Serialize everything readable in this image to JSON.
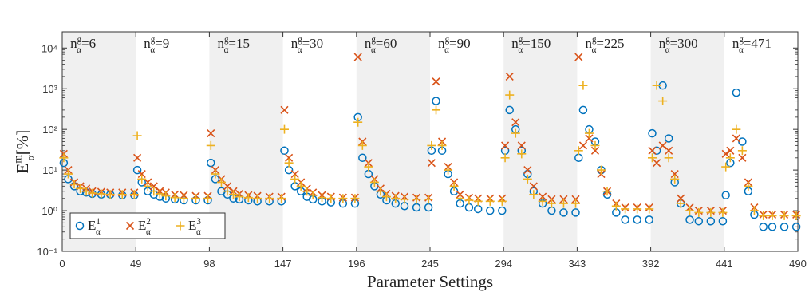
{
  "chart_data": {
    "type": "scatter",
    "xlabel": "Parameter Settings",
    "ylabel": {
      "base": "E",
      "sup": "m",
      "sub": "α",
      "unit": "[%]"
    },
    "group_symbol": {
      "base": "n",
      "sup": "g",
      "sub": "α",
      "relation": "="
    },
    "group_sizes": [
      6,
      9,
      15,
      30,
      60,
      90,
      150,
      225,
      300,
      471
    ],
    "xlim": [
      0,
      490
    ],
    "xticks": [
      0,
      49,
      98,
      147,
      196,
      245,
      294,
      343,
      392,
      441,
      490
    ],
    "ylim": [
      0.1,
      25000
    ],
    "log_y": true,
    "yticks": [
      {
        "value": 0.1,
        "label": "10⁻¹"
      },
      {
        "value": 1,
        "label": "10⁰"
      },
      {
        "value": 10,
        "label": "10¹"
      },
      {
        "value": 100,
        "label": "10²"
      },
      {
        "value": 1000,
        "label": "10³"
      },
      {
        "value": 10000,
        "label": "10⁴"
      }
    ],
    "band_shading": "#f0f0f0",
    "legend_position": "lower left",
    "x": [
      1,
      4,
      8,
      12,
      16,
      20,
      26,
      32,
      40,
      48,
      50,
      53,
      57,
      61,
      65,
      69,
      75,
      81,
      89,
      97,
      99,
      102,
      106,
      110,
      114,
      118,
      124,
      130,
      138,
      146,
      148,
      151,
      155,
      159,
      163,
      167,
      173,
      179,
      187,
      195,
      197,
      200,
      204,
      208,
      212,
      216,
      222,
      228,
      236,
      244,
      246,
      249,
      253,
      257,
      261,
      265,
      271,
      277,
      285,
      293,
      295,
      298,
      302,
      306,
      310,
      314,
      320,
      326,
      334,
      342,
      344,
      347,
      351,
      355,
      359,
      363,
      369,
      375,
      383,
      391,
      393,
      396,
      400,
      404,
      408,
      412,
      418,
      424,
      432,
      440,
      442,
      445,
      449,
      453,
      457,
      461,
      467,
      473,
      481,
      489
    ],
    "series": [
      {
        "name": "E",
        "sup": "1",
        "sub": "α",
        "color": "#0072bd",
        "marker": "o",
        "values": [
          15,
          6,
          4,
          3,
          2.8,
          2.6,
          2.5,
          2.5,
          2.4,
          2.4,
          10,
          5,
          3,
          2.5,
          2.2,
          2,
          1.9,
          1.8,
          1.8,
          1.8,
          15,
          6,
          3,
          2.5,
          2,
          1.9,
          1.8,
          1.7,
          1.7,
          1.7,
          30,
          10,
          4,
          3,
          2.2,
          1.9,
          1.7,
          1.6,
          1.5,
          1.5,
          200,
          20,
          8,
          4,
          2.5,
          1.8,
          1.5,
          1.3,
          1.2,
          1.2,
          30,
          500,
          30,
          8,
          3,
          1.5,
          1.2,
          1.1,
          1,
          1,
          30,
          300,
          100,
          30,
          8,
          3,
          1.5,
          1,
          0.9,
          0.9,
          20,
          300,
          100,
          50,
          10,
          2.5,
          0.9,
          0.6,
          0.6,
          0.6,
          80,
          30,
          1200,
          60,
          5,
          1.5,
          0.6,
          0.55,
          0.55,
          0.55,
          2.4,
          15,
          800,
          50,
          3,
          0.8,
          0.4,
          0.4,
          0.4,
          0.4
        ]
      },
      {
        "name": "E",
        "sup": "2",
        "sub": "α",
        "color": "#d95319",
        "marker": "x",
        "values": [
          25,
          10,
          5,
          4,
          3.5,
          3,
          2.9,
          2.8,
          2.8,
          2.8,
          20,
          8,
          5,
          4,
          3,
          2.8,
          2.5,
          2.4,
          2.3,
          2.3,
          80,
          10,
          6,
          4,
          3,
          2.6,
          2.4,
          2.3,
          2.2,
          2.2,
          300,
          20,
          8,
          5,
          3.5,
          2.8,
          2.4,
          2.2,
          2.1,
          2.1,
          6000,
          50,
          15,
          6,
          3.5,
          2.6,
          2.3,
          2.2,
          2.1,
          2.1,
          15,
          1500,
          50,
          12,
          5,
          2.5,
          2.1,
          2,
          2,
          2,
          40,
          2000,
          150,
          40,
          10,
          4,
          2.2,
          1.9,
          1.9,
          1.9,
          6000,
          40,
          60,
          30,
          8,
          3,
          1.5,
          1.2,
          1.2,
          1.2,
          30,
          15,
          40,
          30,
          8,
          2,
          1.2,
          1,
          1,
          1,
          25,
          30,
          60,
          20,
          5,
          1.2,
          0.8,
          0.8,
          0.8,
          0.8
        ]
      },
      {
        "name": "E",
        "sup": "3",
        "sub": "α",
        "color": "#edb120",
        "marker": "+",
        "values": [
          20,
          8,
          4.5,
          3.5,
          3,
          2.7,
          2.6,
          2.5,
          2.5,
          2.5,
          70,
          6,
          4,
          3,
          2.6,
          2.3,
          2.1,
          2,
          2,
          2,
          40,
          8,
          5,
          3,
          2.5,
          2.2,
          2.1,
          2,
          2,
          2,
          100,
          15,
          6,
          4,
          3,
          2.4,
          2.1,
          2,
          2,
          2,
          150,
          40,
          12,
          5,
          3,
          2.2,
          2,
          1.9,
          1.9,
          1.9,
          40,
          300,
          40,
          10,
          4,
          2,
          1.8,
          1.7,
          1.7,
          1.7,
          20,
          700,
          80,
          25,
          6,
          2.5,
          1.7,
          1.5,
          1.5,
          1.5,
          30,
          1200,
          80,
          40,
          10,
          3,
          1.3,
          1.1,
          1.1,
          1.1,
          20,
          1200,
          500,
          20,
          6,
          1.5,
          1,
          0.9,
          0.9,
          0.9,
          12,
          20,
          100,
          30,
          4,
          1,
          0.75,
          0.75,
          0.75,
          0.75
        ]
      }
    ]
  }
}
